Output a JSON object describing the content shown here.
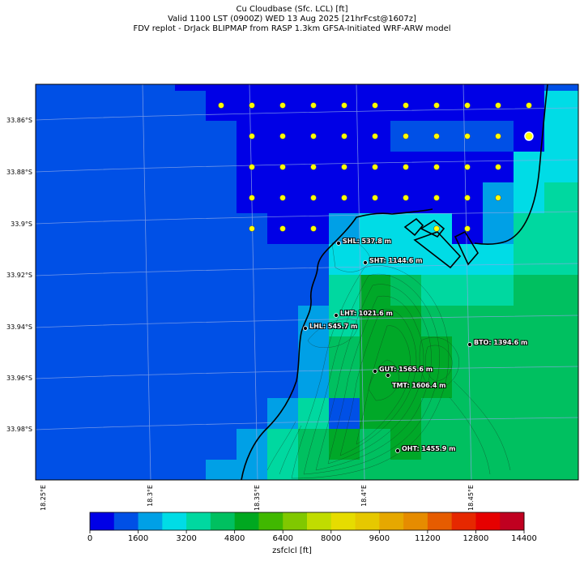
{
  "title": {
    "line1": "Cu Cloudbase (Sfc. LCL) [ft]",
    "line2": "Valid 1100 LST (0900Z) WED 13 Aug 2025 [21hrFcst@1607z]",
    "line3": "FDV replot - DrJack BLIPMAP from RASP 1.3km GFSA-Initiated WRF-ARW model"
  },
  "lat_labels": [
    "33.86°S",
    "33.88°S",
    "33.9°S",
    "33.92°S",
    "33.94°S",
    "33.96°S",
    "33.98°S"
  ],
  "lon_labels": [
    "18.25°E",
    "18.3°E",
    "18.35°E",
    "18.4°E",
    "18.45°E"
  ],
  "stations": [
    {
      "label": "SHL: 537.8 m"
    },
    {
      "label": "SHT: 1144.6 m"
    },
    {
      "label": "LHT: 1021.6 m"
    },
    {
      "label": "LHL: 545.7 m"
    },
    {
      "label": "BTO: 1394.6 m"
    },
    {
      "label": "GUT: 1565.6 m"
    },
    {
      "label": "TMT: 1606.4 m"
    },
    {
      "label": "OHT: 1455.9 m"
    }
  ],
  "colorbar": {
    "title": "zsfclcl [ft]",
    "ticks": [
      "0",
      "1600",
      "3200",
      "4800",
      "6400",
      "8000",
      "9600",
      "11200",
      "12800",
      "14400"
    ],
    "colors": [
      "#0000e6",
      "#0050e6",
      "#00a0e6",
      "#00dce6",
      "#00d8a0",
      "#00c060",
      "#00a820",
      "#40b800",
      "#80c800",
      "#c0dc00",
      "#e6dc00",
      "#e6c800",
      "#e6a800",
      "#e68c00",
      "#e65c00",
      "#e62800",
      "#e60000",
      "#c00020"
    ]
  }
}
